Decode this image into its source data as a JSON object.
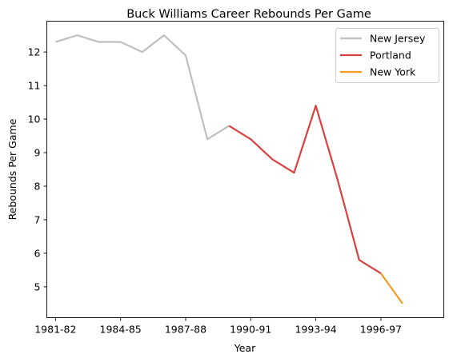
{
  "chart_data": {
    "type": "line",
    "title": "Buck Williams Career Rebounds Per Game",
    "xlabel": "Year",
    "ylabel": "Rebounds Per Game",
    "x_tick_labels": [
      "1981-82",
      "1984-85",
      "1987-88",
      "1990-91",
      "1993-94",
      "1996-97"
    ],
    "x_tick_positions": [
      1981,
      1984,
      1987,
      1990,
      1993,
      1996
    ],
    "y_ticks": [
      5,
      6,
      7,
      8,
      9,
      10,
      11,
      12
    ],
    "xlim": [
      1980.6,
      1998.9
    ],
    "ylim": [
      4.08,
      12.92
    ],
    "grid": false,
    "legend_placement": "top-right",
    "series": [
      {
        "name": "New Jersey",
        "color": "#bfbfbf",
        "x": [
          1981,
          1982,
          1983,
          1984,
          1985,
          1986,
          1987,
          1988,
          1989
        ],
        "values": [
          12.3,
          12.5,
          12.3,
          12.3,
          12.0,
          12.5,
          11.9,
          9.4,
          9.8
        ]
      },
      {
        "name": "Portland",
        "color": "#d94141",
        "x": [
          1989,
          1990,
          1991,
          1992,
          1993,
          1994,
          1995,
          1996
        ],
        "values": [
          9.8,
          9.4,
          8.8,
          8.4,
          10.4,
          8.2,
          5.8,
          5.4
        ]
      },
      {
        "name": "New York",
        "color": "#f59b21",
        "x": [
          1996,
          1997
        ],
        "values": [
          5.4,
          4.5
        ]
      }
    ]
  }
}
